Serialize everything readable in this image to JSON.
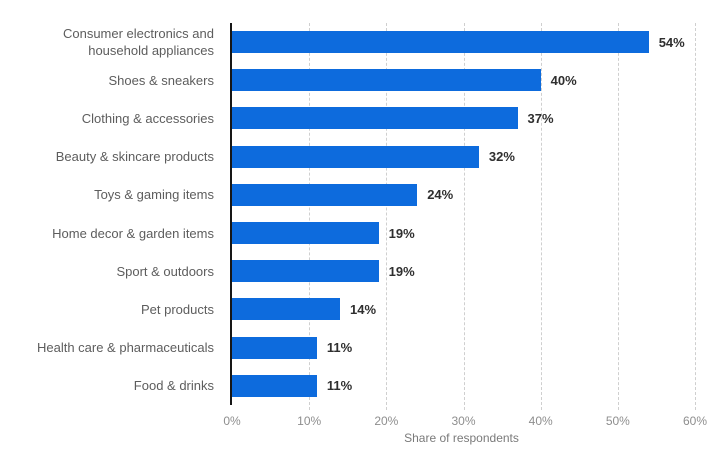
{
  "chart_data": {
    "type": "bar",
    "orientation": "horizontal",
    "categories": [
      "Consumer electronics and household appliances",
      "Shoes & sneakers",
      "Clothing & accessories",
      "Beauty & skincare products",
      "Toys & gaming items",
      "Home decor & garden items",
      "Sport & outdoors",
      "Pet products",
      "Health care & pharmaceuticals",
      "Food & drinks"
    ],
    "values": [
      54,
      40,
      37,
      32,
      24,
      19,
      19,
      14,
      11,
      11
    ],
    "value_labels": [
      "54%",
      "40%",
      "37%",
      "32%",
      "24%",
      "19%",
      "19%",
      "14%",
      "11%",
      "11%"
    ],
    "title": "",
    "xlabel": "Share of respondents",
    "ylabel": "",
    "xlim": [
      0,
      60
    ],
    "xticks": [
      0,
      10,
      20,
      30,
      40,
      50,
      60
    ],
    "xtick_labels": [
      "0%",
      "10%",
      "20%",
      "30%",
      "40%",
      "50%",
      "60%"
    ],
    "grid": "vertical-dashed",
    "legend": "none",
    "colors": {
      "bar": "#0d6bdd",
      "value_label": "#2f2f2f",
      "category_label": "#5d5d5d",
      "tick_label": "#8e8e8e",
      "axis_label": "#7a7a7a",
      "gridline": "#cfcfcf",
      "axis_line": "#161616",
      "background": "#ffffff"
    }
  }
}
